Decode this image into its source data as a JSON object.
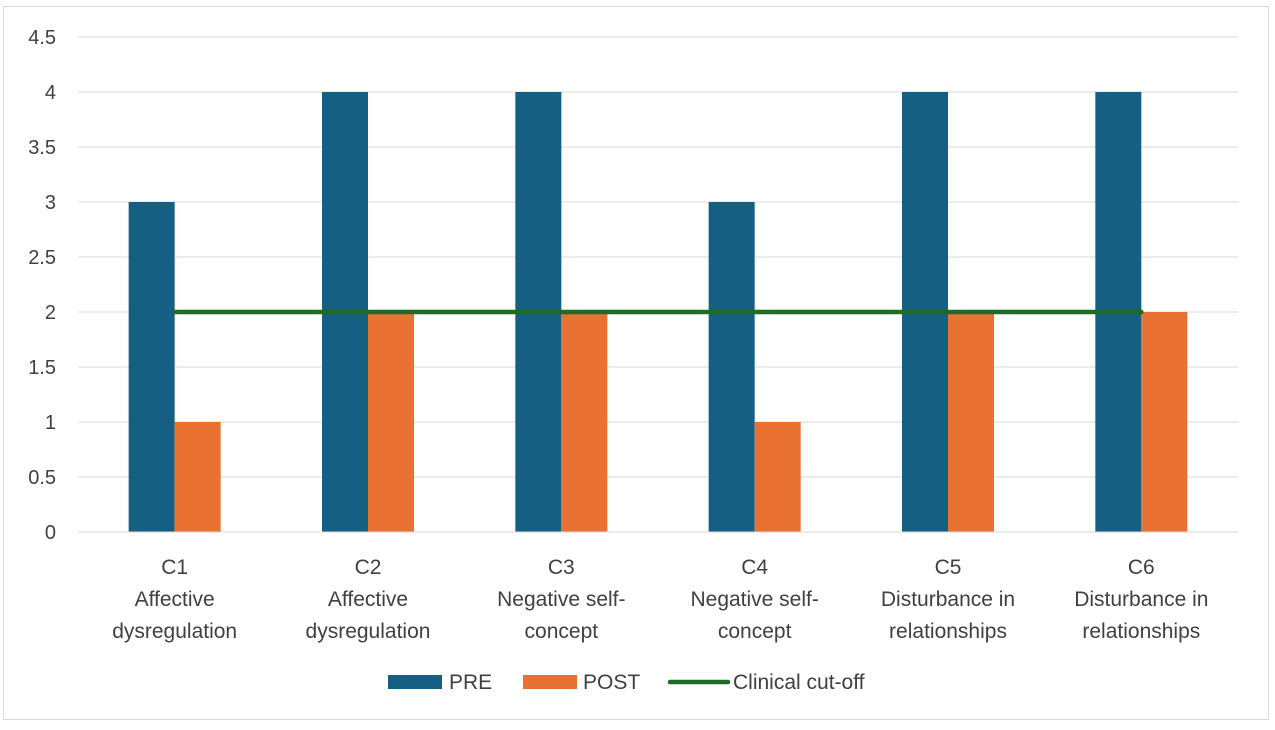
{
  "chart_data": {
    "type": "bar",
    "categories": [
      [
        "C1",
        "Affective",
        "dysregulation"
      ],
      [
        "C2",
        "Affective",
        "dysregulation"
      ],
      [
        "C3",
        "Negative self-",
        "concept"
      ],
      [
        "C4",
        "Negative self-",
        "concept"
      ],
      [
        "C5",
        "Disturbance in",
        "relationships"
      ],
      [
        "C6",
        "Disturbance in",
        "relationships"
      ]
    ],
    "series": [
      {
        "name": "PRE",
        "kind": "bar",
        "color": "#156082",
        "values": [
          3,
          4,
          4,
          3,
          4,
          4
        ]
      },
      {
        "name": "POST",
        "kind": "bar",
        "color": "#e97132",
        "values": [
          1,
          2,
          2,
          1,
          2,
          2
        ]
      },
      {
        "name": "Clinical cut-off",
        "kind": "line",
        "color": "#1e6b24",
        "values": [
          2,
          2,
          2,
          2,
          2,
          2
        ]
      }
    ],
    "y_ticks": [
      "0",
      "0.5",
      "1",
      "1.5",
      "2",
      "2.5",
      "3",
      "3.5",
      "4",
      "4.5"
    ],
    "ylim": [
      0,
      4.5
    ],
    "grid": true,
    "legend_position": "bottom",
    "title": "",
    "xlabel": "",
    "ylabel": ""
  }
}
